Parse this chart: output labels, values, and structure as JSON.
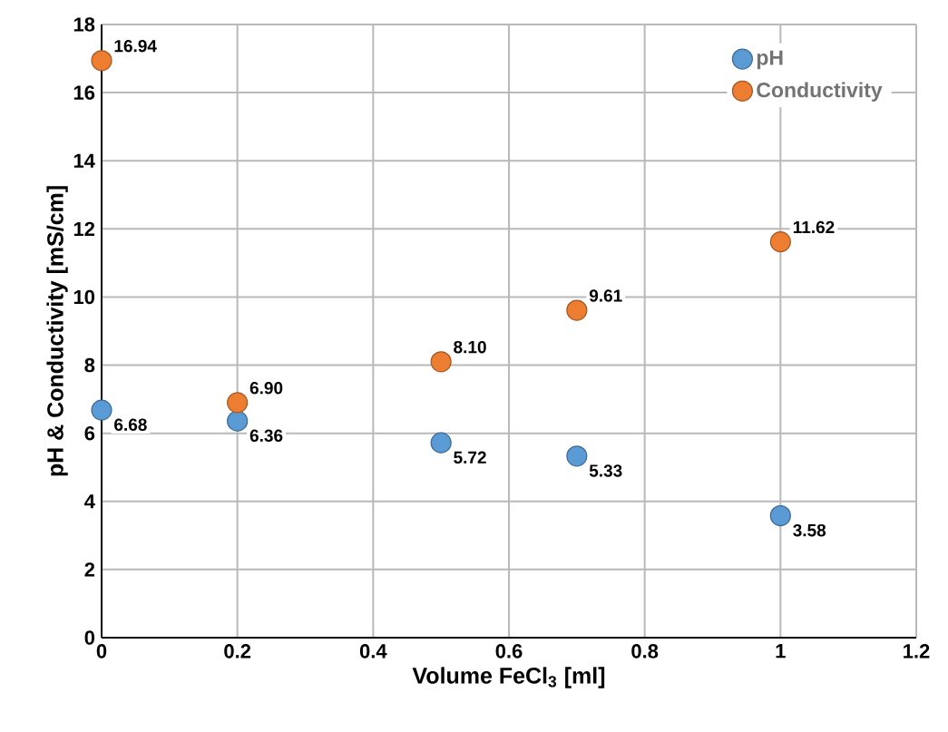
{
  "chart_data": {
    "type": "scatter",
    "xlabel": "Volume FeCl$_{3}$ [ml]",
    "ylabel": "pH & Conductivity [mS/cm]",
    "xlim": [
      0,
      1.2
    ],
    "xticks": [
      0,
      0.2,
      0.4,
      0.6,
      0.8,
      1,
      1.2
    ],
    "ylim": [
      0,
      18
    ],
    "yticks": [
      0,
      2,
      4,
      6,
      8,
      10,
      12,
      14,
      16,
      18
    ],
    "grid": true,
    "legend": "top right",
    "marker": "circle",
    "series": [
      {
        "name": "pH",
        "color": "#5b9bd5",
        "x": [
          0,
          0.2,
          0.5,
          0.7,
          1
        ],
        "values": [
          6.68,
          6.36,
          5.72,
          5.33,
          3.58
        ],
        "value_labels": [
          "6.68",
          "6.36",
          "5.72",
          "5.33",
          "3.58"
        ]
      },
      {
        "name": "Conductivity",
        "color": "#ed7d31",
        "x": [
          0,
          0.2,
          0.5,
          0.7,
          1
        ],
        "values": [
          16.94,
          6.9,
          8.1,
          9.61,
          11.62
        ],
        "value_labels": [
          "16.94",
          "6.90",
          "8.10",
          "9.61",
          "11.62"
        ]
      }
    ]
  }
}
